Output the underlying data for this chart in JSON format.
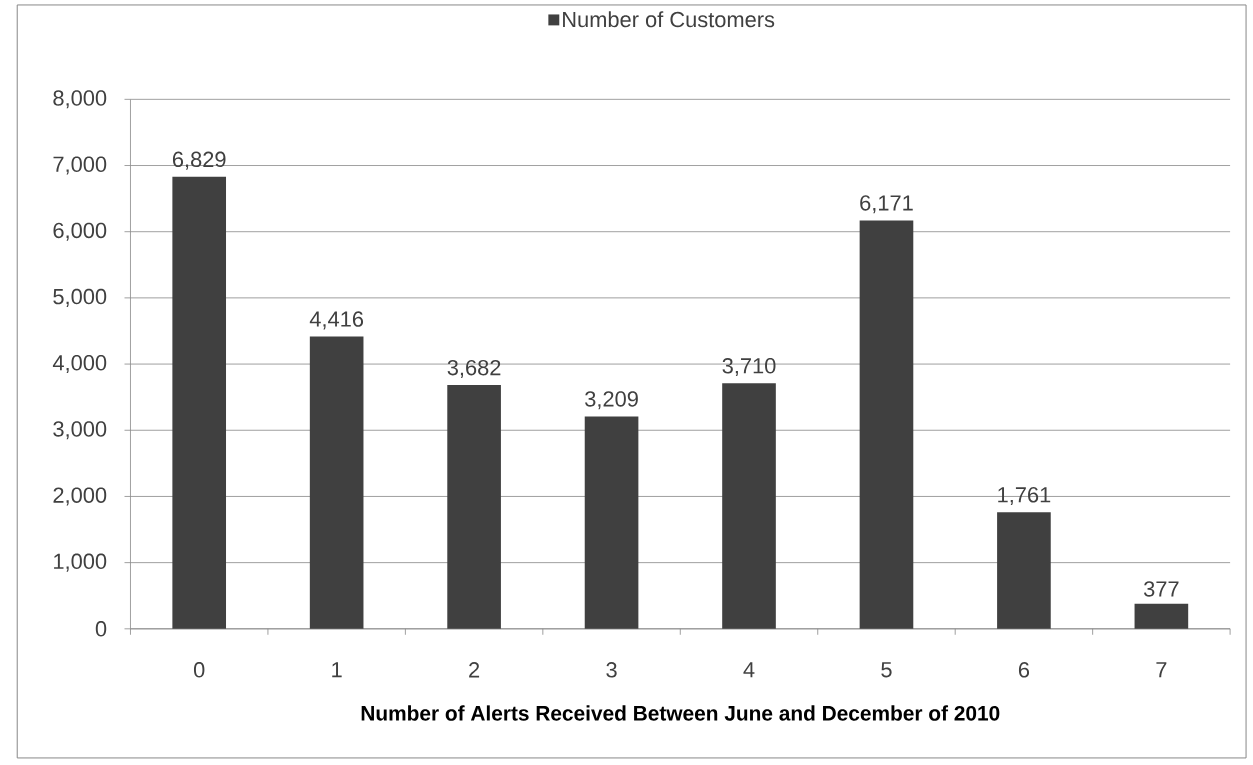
{
  "chart_data": {
    "type": "bar",
    "xlabel": "Number of Alerts Received Between June and December of 2010",
    "categories": [
      "0",
      "1",
      "2",
      "3",
      "4",
      "5",
      "6",
      "7"
    ],
    "series": [
      {
        "name": "Number of Customers",
        "color": "#404040",
        "values": [
          6829,
          4416,
          3682,
          3209,
          3710,
          6171,
          1761,
          377
        ],
        "value_labels": [
          "6,829",
          "4,416",
          "3,682",
          "3,209",
          "3,710",
          "6,171",
          "1,761",
          "377"
        ]
      }
    ],
    "ylim": [
      0,
      8000
    ],
    "yticks": [
      0,
      {
        "value": 1000,
        "label": "1,000"
      },
      {
        "value": 2000,
        "label": "2,000"
      },
      {
        "value": 3000,
        "label": "3,000"
      },
      {
        "value": 4000,
        "label": "4,000"
      },
      {
        "value": 5000,
        "label": "5,000"
      },
      {
        "value": 6000,
        "label": "6,000"
      },
      {
        "value": 7000,
        "label": "7,000"
      },
      {
        "value": 8000,
        "label": "8,000"
      }
    ],
    "grid": "y",
    "legend": "top"
  }
}
